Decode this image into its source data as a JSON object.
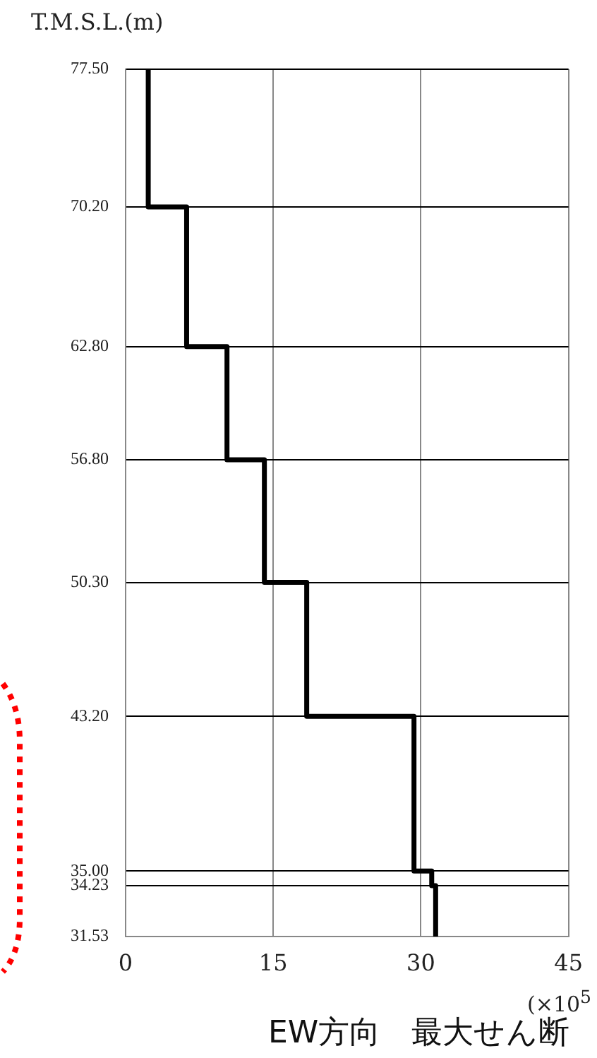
{
  "chart_data": {
    "type": "line",
    "orientation": "horizontal",
    "ylabel": "T.M.S.L.(m)",
    "xlabel": "EW方向　最大せん断",
    "annotations": [
      "(×10$^{5}$"
    ],
    "x": [
      77.5,
      70.2,
      70.2,
      62.8,
      62.8,
      56.8,
      56.8,
      50.3,
      50.3,
      43.2,
      43.2,
      35.0,
      35.0,
      34.23,
      34.23,
      31.53
    ],
    "series": [
      {
        "color": "#000000",
        "values": [
          2.3,
          2.3,
          6.2,
          6.2,
          10.3,
          10.3,
          14.1,
          14.1,
          18.4,
          18.4,
          29.3,
          29.3,
          31.1,
          31.1,
          31.5,
          31.5
        ]
      }
    ],
    "xlim": [
      0,
      45
    ],
    "xticks": [
      0,
      15,
      30,
      45
    ],
    "ylim": [
      31.53,
      77.5
    ],
    "yticks": [
      {
        "value": 77.5,
        "label": "77.50"
      },
      {
        "value": 70.2,
        "label": "70.20"
      },
      {
        "value": 62.8,
        "label": "62.80"
      },
      {
        "value": 56.8,
        "label": "56.80"
      },
      {
        "value": 50.3,
        "label": "50.30"
      },
      {
        "value": 43.2,
        "label": "43.20"
      },
      {
        "value": 35.0,
        "label": "35.00"
      },
      {
        "value": 34.23,
        "label": "34.23"
      },
      {
        "value": 31.53,
        "label": "31.53"
      }
    ],
    "grid": true,
    "marker": "none",
    "line_style": "solid",
    "legend": false
  }
}
